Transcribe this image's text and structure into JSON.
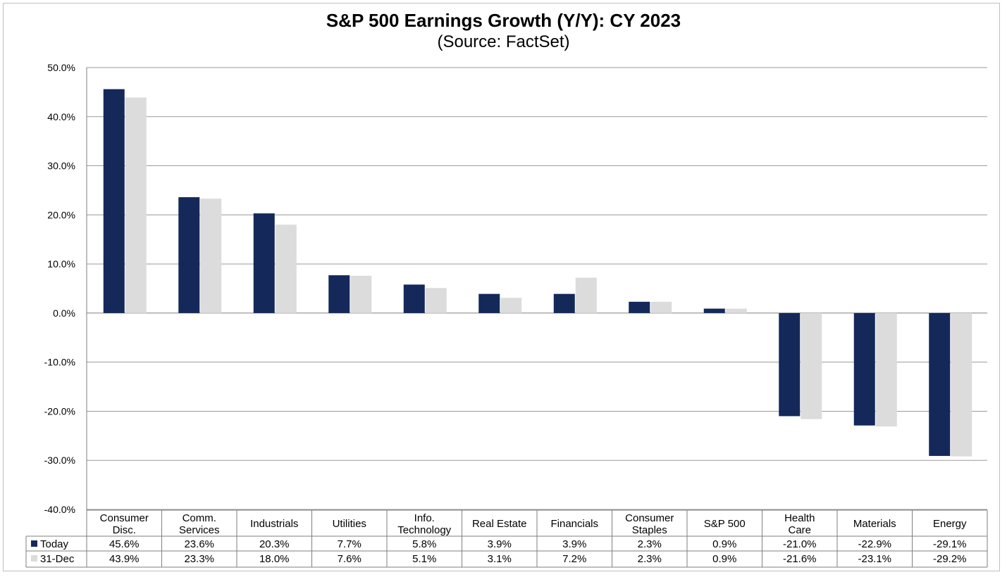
{
  "chart_data": {
    "type": "bar",
    "title": "S&P 500 Earnings Growth (Y/Y): CY 2023",
    "subtitle": "(Source: FactSet)",
    "categories": [
      [
        "Consumer",
        "Disc."
      ],
      [
        "Comm.",
        "Services"
      ],
      [
        "Industrials"
      ],
      [
        "Utilities"
      ],
      [
        "Info.",
        "Technology"
      ],
      [
        "Real Estate"
      ],
      [
        "Financials"
      ],
      [
        "Consumer",
        "Staples"
      ],
      [
        "S&P 500"
      ],
      [
        "Health",
        "Care"
      ],
      [
        "Materials"
      ],
      [
        "Energy"
      ]
    ],
    "series": [
      {
        "name": "Today",
        "color": "#14285a",
        "values": [
          45.6,
          23.6,
          20.3,
          7.7,
          5.8,
          3.9,
          3.9,
          2.3,
          0.9,
          -21.0,
          -22.9,
          -29.1
        ],
        "labels": [
          "45.6%",
          "23.6%",
          "20.3%",
          "7.7%",
          "5.8%",
          "3.9%",
          "3.9%",
          "2.3%",
          "0.9%",
          "-21.0%",
          "-22.9%",
          "-29.1%"
        ]
      },
      {
        "name": "31-Dec",
        "color": "#dcdcdc",
        "values": [
          43.9,
          23.3,
          18.0,
          7.6,
          5.1,
          3.1,
          7.2,
          2.3,
          0.9,
          -21.6,
          -23.1,
          -29.2
        ],
        "labels": [
          "43.9%",
          "23.3%",
          "18.0%",
          "7.6%",
          "5.1%",
          "3.1%",
          "7.2%",
          "2.3%",
          "0.9%",
          "-21.6%",
          "-23.1%",
          "-29.2%"
        ]
      }
    ],
    "yticks": [
      {
        "value": 50,
        "label": "50.0%"
      },
      {
        "value": 40,
        "label": "40.0%"
      },
      {
        "value": 30,
        "label": "30.0%"
      },
      {
        "value": 20,
        "label": "20.0%"
      },
      {
        "value": 10,
        "label": "10.0%"
      },
      {
        "value": 0,
        "label": "0.0%"
      },
      {
        "value": -10,
        "label": "-10.0%"
      },
      {
        "value": -20,
        "label": "-20.0%"
      },
      {
        "value": -30,
        "label": "-30.0%"
      },
      {
        "value": -40,
        "label": "-40.0%"
      }
    ],
    "ylim": [
      -40,
      50
    ],
    "grid": true,
    "data_table": true
  }
}
